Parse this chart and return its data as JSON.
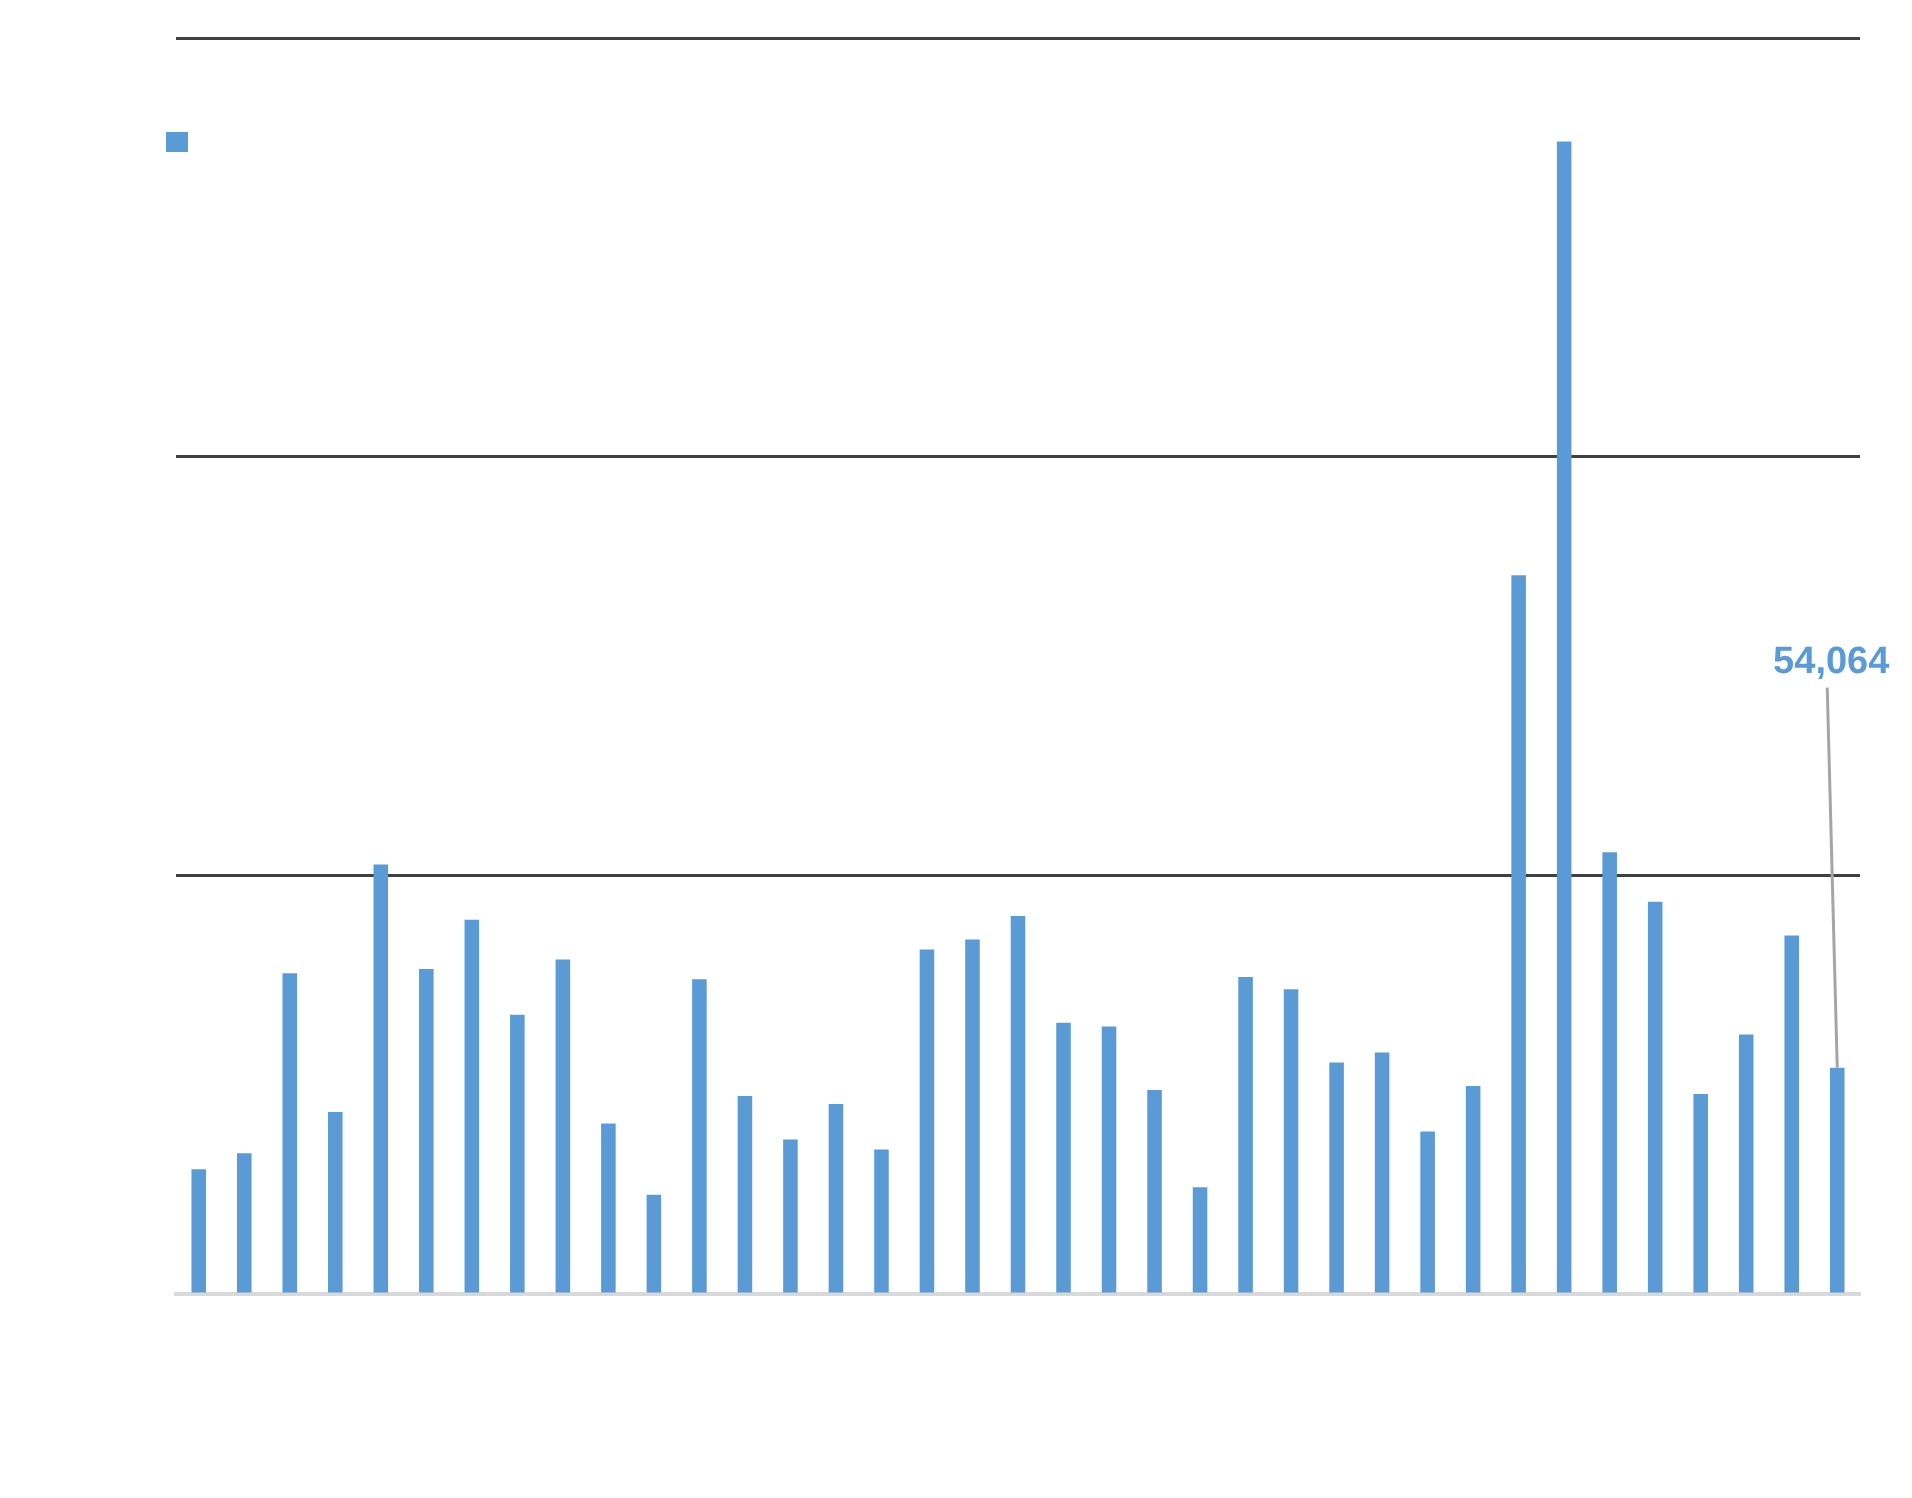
{
  "chart_data": {
    "type": "bar",
    "categories": [
      null,
      null,
      null,
      null,
      null,
      null,
      null,
      null,
      null,
      null,
      null,
      null,
      null,
      null,
      null,
      null,
      null,
      null,
      null,
      null,
      null,
      null,
      null,
      null,
      null,
      null,
      null,
      null,
      null,
      null,
      null,
      null,
      null,
      null,
      null,
      null,
      null
    ],
    "series": [
      {
        "color": "#5b9bd5",
        "values": [
          29800,
          33600,
          76600,
          43500,
          102600,
          77600,
          89400,
          66700,
          79900,
          40700,
          23700,
          75200,
          47300,
          36900,
          45400,
          34500,
          82300,
          84700,
          90300,
          64800,
          63900,
          48700,
          25500,
          75700,
          72800,
          55300,
          57700,
          38800,
          49700,
          171700,
          275300,
          105500,
          93700,
          47800,
          62000,
          85600,
          54064
        ],
        "value_labels": [
          null,
          null,
          null,
          null,
          null,
          null,
          null,
          null,
          null,
          null,
          null,
          null,
          null,
          null,
          null,
          null,
          null,
          null,
          null,
          null,
          null,
          null,
          null,
          null,
          null,
          null,
          null,
          null,
          null,
          null,
          null,
          null,
          null,
          null,
          null,
          null,
          "54,064"
        ]
      }
    ],
    "ylim": [
      0,
      300000
    ],
    "yticks": [
      {
        "value": 0,
        "label": null
      },
      {
        "value": 100000,
        "label": null
      },
      {
        "value": 200000,
        "label": null
      },
      {
        "value": 300000,
        "label": null
      }
    ],
    "grid": "y",
    "tick_labels": false
  }
}
